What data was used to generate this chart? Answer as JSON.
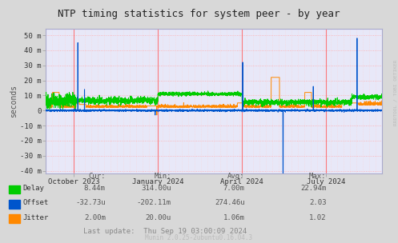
{
  "title": "NTP timing statistics for system peer - by year",
  "ylabel": "seconds",
  "background_color": "#d8d8d8",
  "plot_bg_color": "#e8e8f8",
  "grid_color_h": "#ffaaaa",
  "grid_color_v": "#ffcccc",
  "ylim": [
    -42,
    54
  ],
  "yticks": [
    -40,
    -30,
    -20,
    -10,
    0,
    10,
    20,
    30,
    40,
    50
  ],
  "ytick_labels": [
    "-40 m",
    "-30 m",
    "-20 m",
    "-10 m",
    "0",
    "10 m",
    "20 m",
    "30 m",
    "40 m",
    "50 m"
  ],
  "delay_color": "#00cc00",
  "offset_color": "#0055cc",
  "jitter_color": "#ff8800",
  "legend_items": [
    {
      "label": "Delay",
      "color": "#00cc00"
    },
    {
      "label": "Offset",
      "color": "#0055cc"
    },
    {
      "label": "Jitter",
      "color": "#ff8800"
    }
  ],
  "stats": {
    "headers": [
      "Cur:",
      "Min:",
      "Avg:",
      "Max:"
    ],
    "Delay": [
      "8.44m",
      "314.00u",
      "7.00m",
      "22.94m"
    ],
    "Offset": [
      "-32.73u",
      "-202.11m",
      "274.46u",
      "2.03"
    ],
    "Jitter": [
      "2.00m",
      "20.00u",
      "1.06m",
      "1.02"
    ]
  },
  "last_update": "Last update:  Thu Sep 19 03:00:09 2024",
  "munin_version": "Munin 2.0.25-2ubuntu0.16.04.3",
  "watermark": "RRDTOOL / TOBI OETIKER",
  "xticklabels": [
    "October 2023",
    "January 2024",
    "April 2024",
    "July 2024"
  ],
  "vline_color": "#ff6666",
  "border_color": "#aaaacc"
}
